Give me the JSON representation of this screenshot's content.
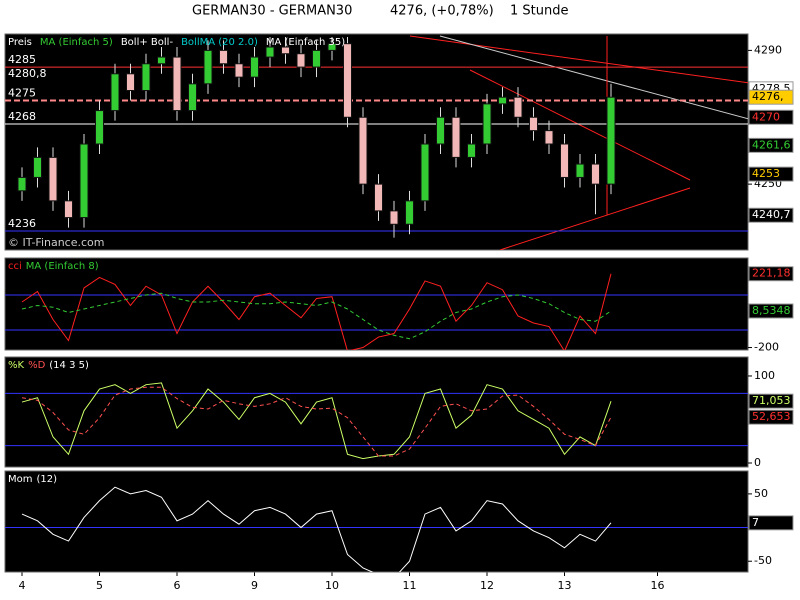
{
  "header": {
    "symbol": "GERMAN30 - GERMAN30",
    "quote": "4276, (+0,78%)",
    "interval": "1 Stunde"
  },
  "chart_data": [
    {
      "type": "candlestick",
      "legend": [
        {
          "label": "Preis",
          "color": "#ffffff"
        },
        {
          "label": "MA (Einfach 5)",
          "color": "#33cc33"
        },
        {
          "label": "Boll+ Boll-",
          "color": "#ffffff"
        },
        {
          "label": "BollMA (20 2.0)",
          "color": "#00cccc"
        },
        {
          "label": "MA (Einfach 35)",
          "color": "#ffffff"
        }
      ],
      "copyright": "© IT-Finance.com",
      "categories": [
        "4",
        null,
        null,
        null,
        null,
        "5",
        null,
        null,
        null,
        null,
        "6",
        null,
        null,
        null,
        null,
        "9",
        null,
        null,
        null,
        null,
        "10",
        null,
        null,
        null,
        null,
        "11",
        null,
        null,
        null,
        null,
        "12",
        null,
        null,
        null,
        null,
        "13",
        null,
        null,
        null,
        null,
        null,
        "16"
      ],
      "open": [
        4248,
        4252,
        4258,
        4245,
        4240,
        4262,
        4272,
        4283,
        4278,
        4286,
        4288,
        4272,
        4280,
        4290,
        4286,
        4282,
        4288,
        4291,
        4289,
        4285,
        4290,
        4292,
        4270,
        4250,
        4242,
        4238,
        4245,
        4262,
        4270,
        4258,
        4262,
        4274,
        4276,
        4270,
        4266,
        4262,
        4252,
        4256,
        4250,
        null,
        null,
        null
      ],
      "high": [
        4255,
        4261,
        4261,
        4248,
        4265,
        4275,
        4286,
        4286,
        4289,
        4291,
        4291,
        4283,
        4293,
        4293,
        4289,
        4291,
        4294,
        4294,
        4292,
        4293,
        4294,
        4294,
        4273,
        4253,
        4245,
        4248,
        4265,
        4273,
        4273,
        4265,
        4277,
        4279,
        4279,
        4273,
        4269,
        4265,
        4259,
        4259,
        4280,
        null,
        null,
        null
      ],
      "low": [
        4245,
        4249,
        4242,
        4237,
        4237,
        4259,
        4269,
        4275,
        4275,
        4283,
        4269,
        4269,
        4277,
        4283,
        4279,
        4279,
        4285,
        4286,
        4282,
        4282,
        4287,
        4267,
        4247,
        4239,
        4234,
        4235,
        4242,
        4259,
        4255,
        4255,
        4259,
        4271,
        4267,
        4263,
        4259,
        4249,
        4249,
        4241,
        4247,
        null,
        null,
        null
      ],
      "close": [
        4252,
        4258,
        4245,
        4240,
        4262,
        4272,
        4283,
        4278,
        4286,
        4288,
        4272,
        4280,
        4290,
        4286,
        4282,
        4288,
        4291,
        4289,
        4285,
        4290,
        4292,
        4270,
        4250,
        4242,
        4238,
        4245,
        4262,
        4270,
        4258,
        4262,
        4274,
        4276,
        4270,
        4266,
        4262,
        4252,
        4256,
        4250,
        4276,
        null,
        null,
        null
      ],
      "up_color": "#33cc33",
      "down_color": "#f2b8b8",
      "ylim": [
        4230.3,
        4294.9
      ],
      "yticks": [
        4250,
        4290
      ],
      "levels": [
        {
          "value": 4285,
          "label": "4285",
          "color": "#ff3030"
        },
        {
          "value": 4280.8,
          "label": "4280,8",
          "color": "#ff3030"
        },
        {
          "value": 4275,
          "label": "4275",
          "color": "#ff8888",
          "dash": true
        },
        {
          "value": 4268,
          "label": "4268",
          "color": "#ffffff"
        },
        {
          "value": 4236,
          "label": "4236",
          "color": "#3333ff"
        }
      ],
      "markers": [
        {
          "value": 4278.5,
          "label": "4278,5",
          "bg": "#ffffff",
          "fg": "#000000"
        },
        {
          "value": 4276,
          "label": "4276,",
          "bg": "#ffcc00",
          "fg": "#000000"
        },
        {
          "value": 4270,
          "label": "4270",
          "bg": "#000000",
          "fg": "#ff3030"
        },
        {
          "value": 4261.6,
          "label": "4261,6",
          "bg": "#000000",
          "fg": "#33cc33"
        },
        {
          "value": 4253,
          "label": "4253",
          "bg": "#000000",
          "fg": "#ffcc00"
        },
        {
          "value": 4240.7,
          "label": "4240,7",
          "bg": "#000000",
          "fg": "#ffffff"
        }
      ]
    },
    {
      "type": "line",
      "series": [
        {
          "name": "cci",
          "color": "#ff2020",
          "values": [
            60,
            120,
            -40,
            -160,
            140,
            200,
            160,
            40,
            150,
            100,
            -120,
            60,
            150,
            60,
            -40,
            90,
            110,
            40,
            -30,
            80,
            90,
            -220,
            -200,
            -140,
            -120,
            20,
            180,
            150,
            -50,
            40,
            170,
            130,
            -20,
            -60,
            -80,
            -220,
            -20,
            -120,
            221.18,
            null,
            null,
            null
          ]
        },
        {
          "name": "MA (Einfach 8)",
          "color": "#33cc33",
          "dash": true,
          "values": [
            20,
            40,
            30,
            0,
            20,
            40,
            60,
            80,
            100,
            110,
            80,
            60,
            60,
            70,
            60,
            50,
            50,
            60,
            50,
            40,
            60,
            20,
            -40,
            -100,
            -130,
            -150,
            -110,
            -50,
            0,
            20,
            60,
            90,
            100,
            80,
            50,
            0,
            -40,
            -50,
            8.5348,
            null,
            null,
            null
          ]
        }
      ],
      "ylim": [
        -214,
        311
      ],
      "yticks": [
        -200
      ],
      "hlines": [
        100,
        -100
      ],
      "markers": [
        {
          "value": 221.18,
          "label": "221,18",
          "bg": "#000000",
          "fg": "#ff3030"
        },
        {
          "value": 8.5348,
          "label": "8,5348",
          "bg": "#000000",
          "fg": "#33cc33"
        }
      ]
    },
    {
      "type": "line",
      "params": "(14 3 5)",
      "series": [
        {
          "name": "%K",
          "color": "#ccff66",
          "values": [
            70,
            75,
            30,
            10,
            60,
            85,
            90,
            80,
            90,
            92,
            40,
            60,
            85,
            70,
            50,
            75,
            80,
            70,
            45,
            70,
            75,
            10,
            5,
            8,
            10,
            30,
            80,
            85,
            40,
            55,
            90,
            85,
            60,
            50,
            40,
            10,
            30,
            20,
            71.053,
            null,
            null,
            null
          ]
        },
        {
          "name": "%D",
          "color": "#ff5050",
          "dash": true,
          "values": [
            75,
            72,
            58,
            38,
            33,
            52,
            78,
            85,
            87,
            87,
            74,
            64,
            62,
            72,
            68,
            65,
            68,
            75,
            65,
            62,
            63,
            52,
            30,
            8,
            8,
            16,
            40,
            65,
            68,
            60,
            62,
            77,
            78,
            65,
            50,
            33,
            27,
            20,
            52.653,
            null,
            null,
            null
          ]
        }
      ],
      "ylim": [
        -4.6,
        121.8
      ],
      "yticks": [
        0,
        100
      ],
      "hlines": [
        80,
        20
      ],
      "markers": [
        {
          "value": 71.053,
          "label": "71,053",
          "bg": "#000000",
          "fg": "#ccff66"
        },
        {
          "value": 52.653,
          "label": "52,653",
          "bg": "#000000",
          "fg": "#ff3030"
        }
      ]
    },
    {
      "type": "line",
      "params": "(12)",
      "series": [
        {
          "name": "Mom",
          "color": "#ffffff",
          "values": [
            20,
            10,
            -10,
            -20,
            15,
            40,
            60,
            50,
            55,
            45,
            10,
            20,
            40,
            20,
            5,
            25,
            30,
            20,
            0,
            20,
            25,
            -40,
            -60,
            -70,
            -75,
            -50,
            20,
            30,
            -5,
            10,
            40,
            35,
            10,
            -5,
            -15,
            -30,
            -10,
            -20,
            7,
            null,
            null,
            null
          ]
        }
      ],
      "ylim": [
        -66,
        84
      ],
      "yticks": [
        -50,
        50
      ],
      "hlines": [
        0
      ],
      "markers": [
        {
          "value": 7,
          "label": "7",
          "bg": "#000000",
          "fg": "#ffffff"
        }
      ]
    }
  ]
}
